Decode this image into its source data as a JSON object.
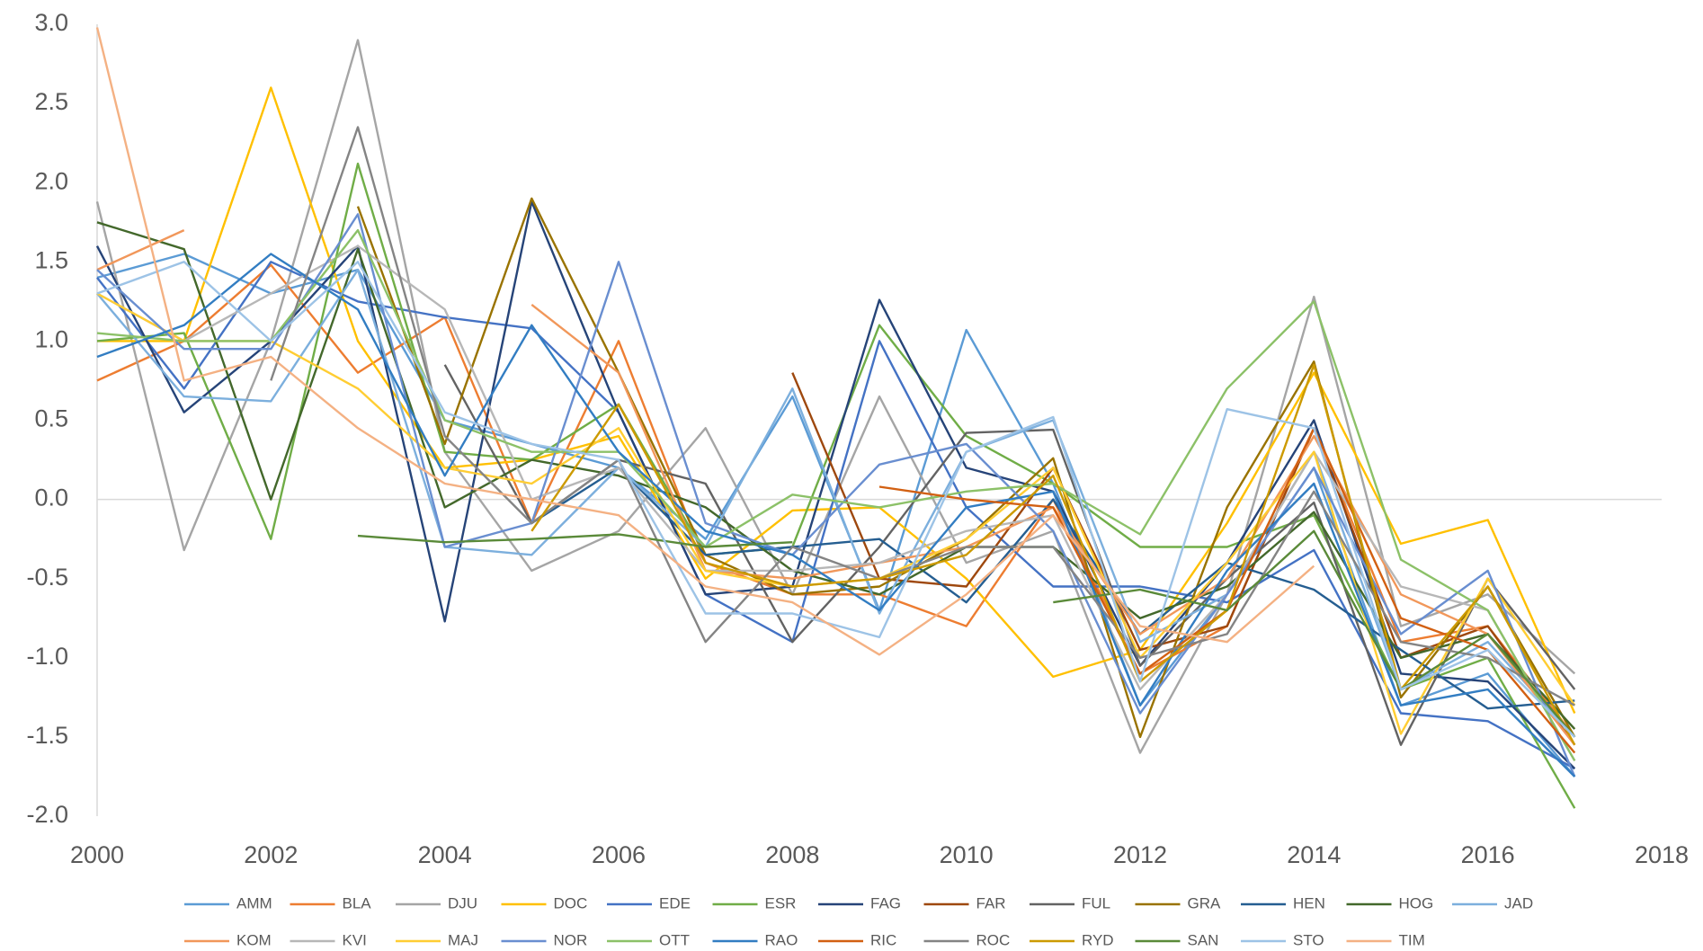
{
  "chart_data": {
    "type": "line",
    "x": [
      2000,
      2001,
      2002,
      2003,
      2004,
      2005,
      2006,
      2007,
      2008,
      2009,
      2010,
      2011,
      2012,
      2013,
      2014,
      2015,
      2016,
      2017
    ],
    "xlim": [
      2000,
      2018
    ],
    "xticks": [
      2000,
      2002,
      2004,
      2006,
      2008,
      2010,
      2012,
      2014,
      2016,
      2018
    ],
    "ylim": [
      -2,
      3
    ],
    "yticks": [
      {
        "value": -2,
        "label": "-2.0"
      },
      -1.5,
      {
        "value": -1,
        "label": "-1.0"
      },
      -0.5,
      {
        "value": 0,
        "label": "0.0"
      },
      0.5,
      {
        "value": 1,
        "label": "1.0"
      },
      1.5,
      {
        "value": 2,
        "label": "2.0"
      },
      2.5,
      {
        "value": 3,
        "label": "3.0"
      }
    ],
    "legend": "bottom",
    "series": [
      {
        "name": "AMM",
        "color": "#5b9bd5",
        "values": [
          1.4,
          1.55,
          1.3,
          1.45,
          0.5,
          0.35,
          0.2,
          -0.25,
          0.65,
          -0.7,
          1.07,
          0.1,
          -1.3,
          -0.6,
          0.2,
          -1.3,
          -1.1,
          -1.75
        ]
      },
      {
        "name": "BLA",
        "color": "#ed7d31",
        "values": [
          0.75,
          1.0,
          1.48,
          0.8,
          1.15,
          -0.15,
          1.0,
          -0.4,
          -0.6,
          -0.6,
          -0.8,
          0.0,
          -1.1,
          -0.8,
          0.45,
          -0.9,
          -0.8,
          -1.5
        ]
      },
      {
        "name": "DJU",
        "color": "#a5a5a5",
        "values": [
          1.88,
          -0.32,
          1.0,
          2.9,
          0.3,
          -0.45,
          -0.2,
          0.45,
          -0.6,
          0.65,
          -0.4,
          -0.2,
          -1.6,
          -0.6,
          1.28,
          -0.8,
          -0.6,
          -1.1
        ]
      },
      {
        "name": "DOC",
        "color": "#ffc000",
        "values": [
          1.0,
          1.0,
          2.6,
          1.0,
          0.2,
          0.25,
          0.4,
          -0.5,
          -0.07,
          -0.05,
          -0.5,
          -1.12,
          -0.95,
          -0.15,
          0.8,
          -0.28,
          -0.13,
          -1.35
        ]
      },
      {
        "name": "EDE",
        "color": "#4472c4",
        "values": [
          1.4,
          0.7,
          1.5,
          1.25,
          1.15,
          1.08,
          0.55,
          -0.6,
          -0.9,
          1.0,
          -0.05,
          -0.55,
          -0.55,
          -0.65,
          -0.32,
          -1.35,
          -1.4,
          -1.7
        ]
      },
      {
        "name": "ESR",
        "color": "#70ad47",
        "values": [
          1.0,
          1.05,
          -0.25,
          2.12,
          0.3,
          0.25,
          0.6,
          -0.35,
          -0.3,
          1.1,
          0.4,
          0.1,
          -0.3,
          -0.3,
          -0.1,
          -1.2,
          -1.0,
          -1.95
        ]
      },
      {
        "name": "FAG",
        "color": "#264478",
        "values": [
          1.6,
          0.55,
          1.0,
          1.6,
          -0.77,
          1.88,
          0.55,
          -0.6,
          -0.55,
          1.26,
          0.2,
          0.05,
          -1.05,
          -0.4,
          0.5,
          -1.1,
          -1.15,
          -1.7
        ]
      },
      {
        "name": "FAR",
        "color": "#9e480e",
        "values": [
          null,
          null,
          null,
          null,
          null,
          null,
          null,
          null,
          0.8,
          -0.5,
          -0.55,
          0.2,
          -0.95,
          -0.8,
          0.45,
          -1.0,
          -0.8,
          -1.55
        ]
      },
      {
        "name": "FUL",
        "color": "#636363",
        "values": [
          null,
          null,
          null,
          null,
          0.85,
          -0.15,
          0.25,
          0.1,
          -0.9,
          -0.3,
          0.42,
          0.44,
          -1.05,
          -0.5,
          -0.02,
          -1.55,
          -0.5,
          -1.2
        ]
      },
      {
        "name": "GRA",
        "color": "#997300",
        "values": [
          null,
          null,
          null,
          1.85,
          0.35,
          1.9,
          0.8,
          -0.35,
          -0.6,
          -0.55,
          -0.25,
          0.26,
          -1.5,
          -0.05,
          0.87,
          -1.25,
          -0.55,
          -1.5
        ]
      },
      {
        "name": "HEN",
        "color": "#255e91",
        "values": [
          null,
          null,
          null,
          null,
          null,
          -0.15,
          0.2,
          -0.35,
          -0.3,
          -0.25,
          -0.65,
          0.0,
          -0.85,
          -0.4,
          -0.57,
          -0.95,
          -1.32,
          -1.27
        ]
      },
      {
        "name": "HOG",
        "color": "#43682b",
        "values": [
          1.75,
          1.58,
          0.0,
          1.58,
          -0.05,
          0.25,
          0.15,
          -0.05,
          -0.45,
          -0.6,
          -0.3,
          -0.3,
          -0.75,
          -0.55,
          -0.08,
          -1.0,
          -0.85,
          -1.45
        ]
      },
      {
        "name": "JAD",
        "color": "#7cafdd",
        "values": [
          1.3,
          0.65,
          0.62,
          1.45,
          -0.3,
          -0.35,
          0.2,
          -0.3,
          0.7,
          -0.72,
          0.3,
          0.5,
          -0.9,
          -0.6,
          0.3,
          -1.2,
          -0.9,
          -1.5
        ]
      },
      {
        "name": "KOM",
        "color": "#f1975a",
        "values": [
          1.45,
          1.7,
          null,
          null,
          null,
          1.23,
          0.8,
          -0.45,
          -0.5,
          -0.4,
          -0.3,
          -0.05,
          -0.85,
          -0.5,
          0.4,
          -0.6,
          -0.85,
          -1.55
        ]
      },
      {
        "name": "KVI",
        "color": "#b7b7b7",
        "values": [
          1.3,
          1.0,
          1.3,
          1.6,
          1.2,
          0.0,
          0.2,
          -0.45,
          -0.45,
          -0.4,
          -0.2,
          -0.1,
          -1.2,
          -0.6,
          0.3,
          -0.55,
          -0.7,
          -1.65
        ]
      },
      {
        "name": "MAJ",
        "color": "#ffcd33",
        "values": [
          1.3,
          1.0,
          1.0,
          0.7,
          0.2,
          0.1,
          0.45,
          -0.45,
          -0.55,
          -0.5,
          -0.25,
          0.2,
          -1.0,
          -0.4,
          0.3,
          -1.48,
          -0.5,
          -1.3
        ]
      },
      {
        "name": "NOR",
        "color": "#698ed0",
        "values": [
          1.45,
          0.95,
          0.95,
          1.8,
          -0.3,
          -0.15,
          1.5,
          -0.15,
          -0.35,
          0.22,
          0.35,
          -0.2,
          -1.35,
          -0.6,
          0.2,
          -0.85,
          -0.45,
          -1.75
        ]
      },
      {
        "name": "OTT",
        "color": "#8cc168",
        "values": [
          1.05,
          1.0,
          1.0,
          1.7,
          0.5,
          0.3,
          0.3,
          -0.3,
          0.03,
          -0.05,
          0.05,
          0.1,
          -0.22,
          0.7,
          1.25,
          -0.38,
          -0.7,
          -1.65
        ]
      },
      {
        "name": "RAO",
        "color": "#327dc2",
        "values": [
          0.9,
          1.1,
          1.55,
          1.2,
          0.15,
          1.1,
          0.3,
          -0.2,
          -0.35,
          -0.7,
          -0.05,
          0.05,
          -1.3,
          -0.45,
          0.1,
          -1.3,
          -1.2,
          -1.75
        ]
      },
      {
        "name": "RIC",
        "color": "#d26012",
        "values": [
          null,
          null,
          null,
          null,
          null,
          null,
          null,
          null,
          null,
          0.08,
          0.0,
          -0.05,
          -1.1,
          -0.7,
          0.45,
          -0.75,
          -0.95,
          -1.6
        ]
      },
      {
        "name": "ROC",
        "color": "#848484",
        "values": [
          null,
          null,
          0.75,
          2.35,
          0.4,
          -0.15,
          0.25,
          -0.9,
          -0.3,
          -0.5,
          -0.3,
          -0.3,
          -1.0,
          -0.85,
          0.05,
          -0.9,
          -1.0,
          -1.3
        ]
      },
      {
        "name": "RYD",
        "color": "#cc9a00",
        "values": [
          null,
          null,
          null,
          null,
          null,
          -0.2,
          0.6,
          -0.4,
          -0.55,
          -0.5,
          -0.35,
          0.15,
          -1.15,
          -0.7,
          0.85,
          -1.2,
          -0.55,
          -1.55
        ]
      },
      {
        "name": "SAN",
        "color": "#5a8a39",
        "values": [
          null,
          null,
          null,
          -0.23,
          -0.27,
          -0.25,
          -0.22,
          -0.3,
          -0.27,
          null,
          null,
          -0.65,
          -0.57,
          -0.7,
          -0.2,
          -1.2,
          -0.85,
          -1.5
        ]
      },
      {
        "name": "STO",
        "color": "#9dc3e6",
        "values": [
          1.3,
          1.5,
          1.0,
          1.5,
          0.55,
          0.35,
          0.25,
          -0.72,
          -0.72,
          -0.87,
          0.3,
          0.52,
          -1.15,
          0.57,
          0.45,
          -1.2,
          -0.95,
          -1.5
        ]
      },
      {
        "name": "TIM",
        "color": "#f4b183",
        "values": [
          2.98,
          0.75,
          0.9,
          0.45,
          0.1,
          0.0,
          -0.1,
          -0.55,
          -0.65,
          -0.98,
          -0.6,
          -0.1,
          -0.8,
          -0.9,
          -0.42,
          null,
          null,
          null
        ]
      }
    ]
  }
}
